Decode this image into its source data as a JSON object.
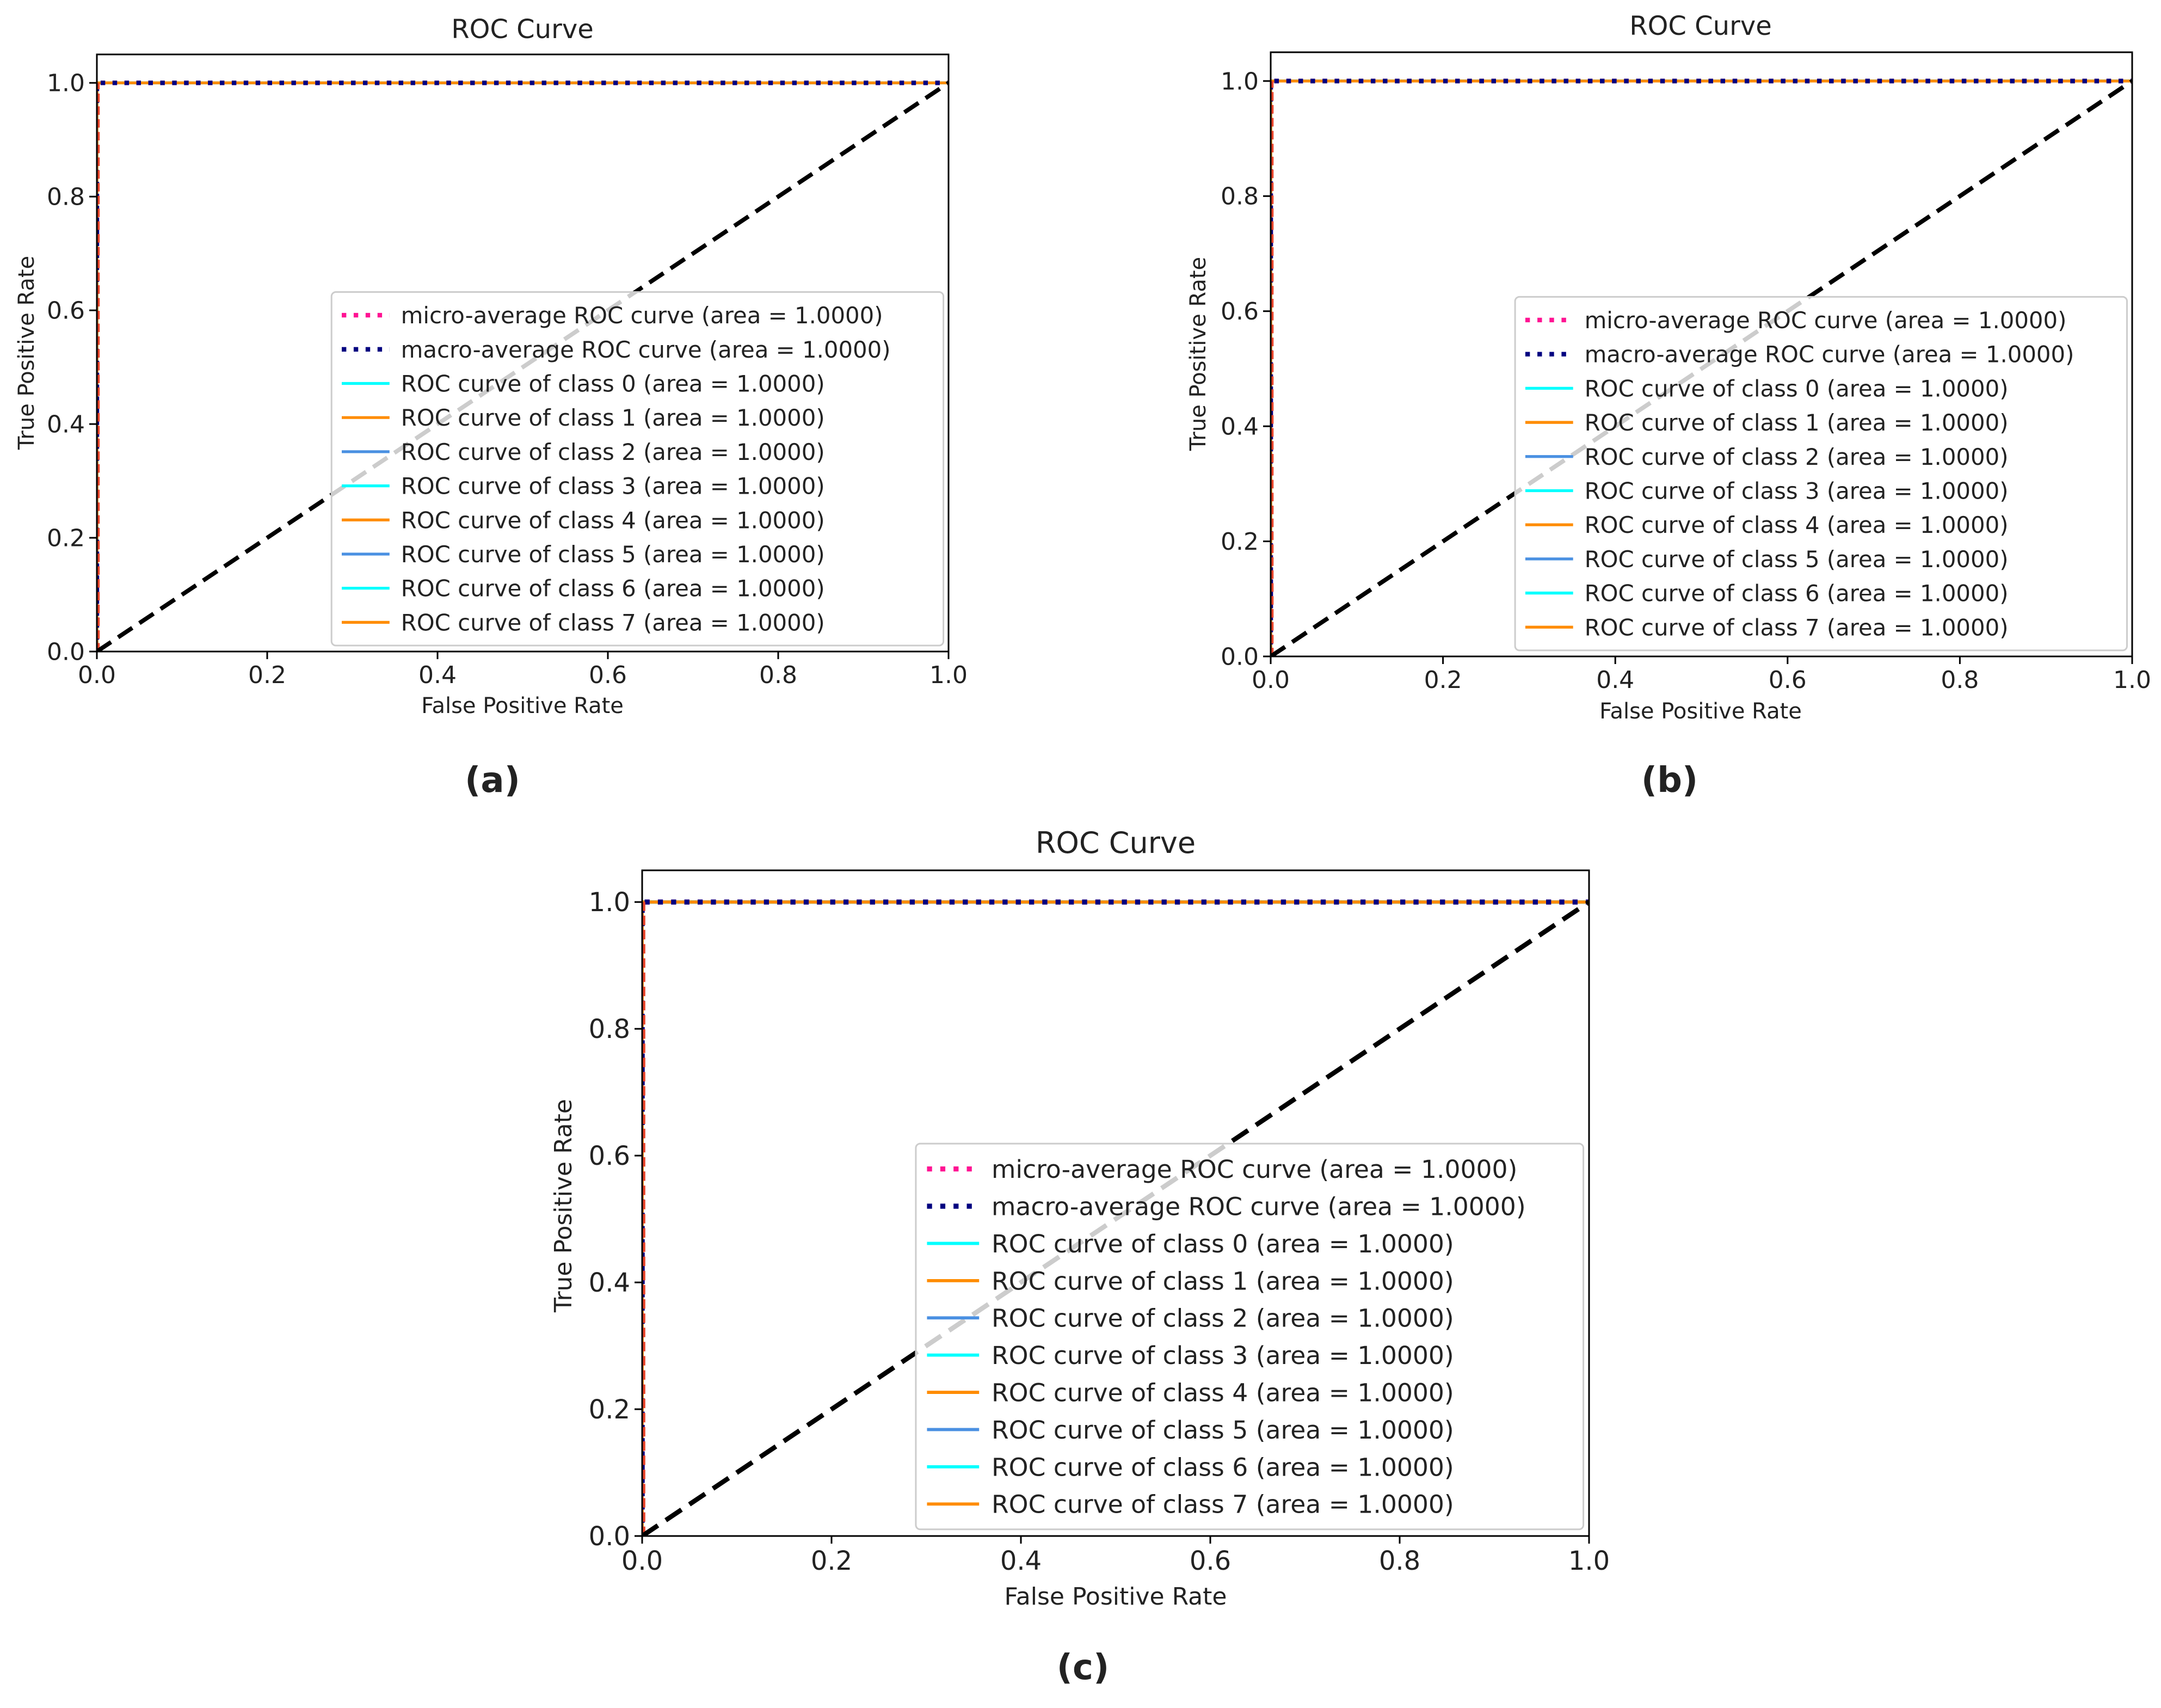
{
  "figure": {
    "panels": [
      {
        "label": "(a)"
      },
      {
        "label": "(b)"
      },
      {
        "label": "(c)"
      }
    ]
  },
  "chart_data": [
    {
      "type": "line",
      "title": "ROC Curve",
      "xlabel": "False Positive Rate",
      "ylabel": "True Positive Rate",
      "xlim": [
        0.0,
        1.0
      ],
      "ylim": [
        0.0,
        1.05
      ],
      "xticks": [
        "0.0",
        "0.2",
        "0.4",
        "0.6",
        "0.8",
        "1.0"
      ],
      "yticks": [
        "0.0",
        "0.2",
        "0.4",
        "0.6",
        "0.8",
        "1.0"
      ],
      "legend_position": "lower-right",
      "diagonal": {
        "x": [
          0,
          1
        ],
        "y": [
          0,
          1
        ],
        "color": "#000000",
        "style": "dashed"
      },
      "series": [
        {
          "name": "micro-average ROC curve (area = 1.0000)",
          "color": "#ff1493",
          "style": "dotted",
          "x": [
            0,
            0,
            1
          ],
          "y": [
            0,
            1,
            1
          ]
        },
        {
          "name": "macro-average ROC curve (area = 1.0000)",
          "color": "#000080",
          "style": "dotted",
          "x": [
            0,
            0,
            1
          ],
          "y": [
            0,
            1,
            1
          ]
        },
        {
          "name": "ROC curve of class 0 (area = 1.0000)",
          "color": "#00ffff",
          "style": "solid",
          "x": [
            0,
            0,
            1
          ],
          "y": [
            0,
            1,
            1
          ]
        },
        {
          "name": "ROC curve of class 1 (area = 1.0000)",
          "color": "#ff8c00",
          "style": "solid",
          "x": [
            0,
            0,
            1
          ],
          "y": [
            0,
            1,
            1
          ]
        },
        {
          "name": "ROC curve of class 2 (area = 1.0000)",
          "color": "#4a90e2",
          "style": "solid",
          "x": [
            0,
            0,
            1
          ],
          "y": [
            0,
            1,
            1
          ]
        },
        {
          "name": "ROC curve of class 3 (area = 1.0000)",
          "color": "#00ffff",
          "style": "solid",
          "x": [
            0,
            0,
            1
          ],
          "y": [
            0,
            1,
            1
          ]
        },
        {
          "name": "ROC curve of class 4 (area = 1.0000)",
          "color": "#ff8c00",
          "style": "solid",
          "x": [
            0,
            0,
            1
          ],
          "y": [
            0,
            1,
            1
          ]
        },
        {
          "name": "ROC curve of class 5 (area = 1.0000)",
          "color": "#4a90e2",
          "style": "solid",
          "x": [
            0,
            0,
            1
          ],
          "y": [
            0,
            1,
            1
          ]
        },
        {
          "name": "ROC curve of class 6 (area = 1.0000)",
          "color": "#00ffff",
          "style": "solid",
          "x": [
            0,
            0,
            1
          ],
          "y": [
            0,
            1,
            1
          ]
        },
        {
          "name": "ROC curve of class 7 (area = 1.0000)",
          "color": "#ff8c00",
          "style": "solid",
          "x": [
            0,
            0,
            1
          ],
          "y": [
            0,
            1,
            1
          ]
        }
      ]
    },
    {
      "type": "line",
      "title": "ROC Curve",
      "xlabel": "False Positive Rate",
      "ylabel": "True Positive Rate",
      "xlim": [
        0.0,
        1.0
      ],
      "ylim": [
        0.0,
        1.05
      ],
      "xticks": [
        "0.0",
        "0.2",
        "0.4",
        "0.6",
        "0.8",
        "1.0"
      ],
      "yticks": [
        "0.0",
        "0.2",
        "0.4",
        "0.6",
        "0.8",
        "1.0"
      ],
      "legend_position": "lower-right",
      "diagonal": {
        "x": [
          0,
          1
        ],
        "y": [
          0,
          1
        ],
        "color": "#000000",
        "style": "dashed"
      },
      "series": [
        {
          "name": "micro-average ROC curve (area = 1.0000)",
          "color": "#ff1493",
          "style": "dotted",
          "x": [
            0,
            0,
            1
          ],
          "y": [
            0,
            1,
            1
          ]
        },
        {
          "name": "macro-average ROC curve (area = 1.0000)",
          "color": "#000080",
          "style": "dotted",
          "x": [
            0,
            0,
            1
          ],
          "y": [
            0,
            1,
            1
          ]
        },
        {
          "name": "ROC curve of class 0 (area = 1.0000)",
          "color": "#00ffff",
          "style": "solid",
          "x": [
            0,
            0,
            1
          ],
          "y": [
            0,
            1,
            1
          ]
        },
        {
          "name": "ROC curve of class 1 (area = 1.0000)",
          "color": "#ff8c00",
          "style": "solid",
          "x": [
            0,
            0,
            1
          ],
          "y": [
            0,
            1,
            1
          ]
        },
        {
          "name": "ROC curve of class 2 (area = 1.0000)",
          "color": "#4a90e2",
          "style": "solid",
          "x": [
            0,
            0,
            1
          ],
          "y": [
            0,
            1,
            1
          ]
        },
        {
          "name": "ROC curve of class 3 (area = 1.0000)",
          "color": "#00ffff",
          "style": "solid",
          "x": [
            0,
            0,
            1
          ],
          "y": [
            0,
            1,
            1
          ]
        },
        {
          "name": "ROC curve of class 4 (area = 1.0000)",
          "color": "#ff8c00",
          "style": "solid",
          "x": [
            0,
            0,
            1
          ],
          "y": [
            0,
            1,
            1
          ]
        },
        {
          "name": "ROC curve of class 5 (area = 1.0000)",
          "color": "#4a90e2",
          "style": "solid",
          "x": [
            0,
            0,
            1
          ],
          "y": [
            0,
            1,
            1
          ]
        },
        {
          "name": "ROC curve of class 6 (area = 1.0000)",
          "color": "#00ffff",
          "style": "solid",
          "x": [
            0,
            0,
            1
          ],
          "y": [
            0,
            1,
            1
          ]
        },
        {
          "name": "ROC curve of class 7 (area = 1.0000)",
          "color": "#ff8c00",
          "style": "solid",
          "x": [
            0,
            0,
            1
          ],
          "y": [
            0,
            1,
            1
          ]
        }
      ]
    },
    {
      "type": "line",
      "title": "ROC Curve",
      "xlabel": "False Positive Rate",
      "ylabel": "True Positive Rate",
      "xlim": [
        0.0,
        1.0
      ],
      "ylim": [
        0.0,
        1.05
      ],
      "xticks": [
        "0.0",
        "0.2",
        "0.4",
        "0.6",
        "0.8",
        "1.0"
      ],
      "yticks": [
        "0.0",
        "0.2",
        "0.4",
        "0.6",
        "0.8",
        "1.0"
      ],
      "legend_position": "lower-right",
      "diagonal": {
        "x": [
          0,
          1
        ],
        "y": [
          0,
          1
        ],
        "color": "#000000",
        "style": "dashed"
      },
      "series": [
        {
          "name": "micro-average ROC curve (area = 1.0000)",
          "color": "#ff1493",
          "style": "dotted",
          "x": [
            0,
            0,
            1
          ],
          "y": [
            0,
            1,
            1
          ]
        },
        {
          "name": "macro-average ROC curve (area = 1.0000)",
          "color": "#000080",
          "style": "dotted",
          "x": [
            0,
            0,
            1
          ],
          "y": [
            0,
            1,
            1
          ]
        },
        {
          "name": "ROC curve of class 0 (area = 1.0000)",
          "color": "#00ffff",
          "style": "solid",
          "x": [
            0,
            0,
            1
          ],
          "y": [
            0,
            1,
            1
          ]
        },
        {
          "name": "ROC curve of class 1 (area = 1.0000)",
          "color": "#ff8c00",
          "style": "solid",
          "x": [
            0,
            0,
            1
          ],
          "y": [
            0,
            1,
            1
          ]
        },
        {
          "name": "ROC curve of class 2 (area = 1.0000)",
          "color": "#4a90e2",
          "style": "solid",
          "x": [
            0,
            0,
            1
          ],
          "y": [
            0,
            1,
            1
          ]
        },
        {
          "name": "ROC curve of class 3 (area = 1.0000)",
          "color": "#00ffff",
          "style": "solid",
          "x": [
            0,
            0,
            1
          ],
          "y": [
            0,
            1,
            1
          ]
        },
        {
          "name": "ROC curve of class 4 (area = 1.0000)",
          "color": "#ff8c00",
          "style": "solid",
          "x": [
            0,
            0,
            1
          ],
          "y": [
            0,
            1,
            1
          ]
        },
        {
          "name": "ROC curve of class 5 (area = 1.0000)",
          "color": "#4a90e2",
          "style": "solid",
          "x": [
            0,
            0,
            1
          ],
          "y": [
            0,
            1,
            1
          ]
        },
        {
          "name": "ROC curve of class 6 (area = 1.0000)",
          "color": "#00ffff",
          "style": "solid",
          "x": [
            0,
            0,
            1
          ],
          "y": [
            0,
            1,
            1
          ]
        },
        {
          "name": "ROC curve of class 7 (area = 1.0000)",
          "color": "#ff8c00",
          "style": "solid",
          "x": [
            0,
            0,
            1
          ],
          "y": [
            0,
            1,
            1
          ]
        }
      ]
    }
  ]
}
